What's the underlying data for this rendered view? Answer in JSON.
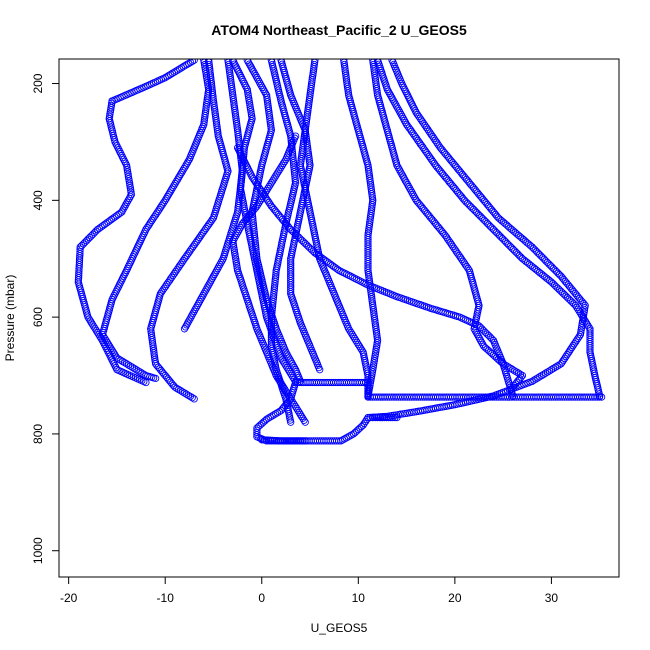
{
  "chart_data": {
    "type": "scatter",
    "title": "ATOM4 Northeast_Pacific_2 U_GEOS5",
    "xlabel": "U_GEOS5",
    "ylabel": "Pressure (mbar)",
    "xlim": [
      -21,
      37
    ],
    "ylim": [
      1045,
      158
    ],
    "y_reversed": true,
    "x_ticks": [
      -20,
      -10,
      0,
      10,
      20,
      30
    ],
    "x_tick_labels": [
      "-20",
      "-10",
      "0",
      "10",
      "20",
      "30"
    ],
    "y_ticks": [
      200,
      400,
      600,
      800,
      1000
    ],
    "y_tick_labels": [
      "200",
      "400",
      "600",
      "800",
      "1000"
    ],
    "marker": "open-circle",
    "color": "#0000ff",
    "grid": false,
    "series": [
      {
        "profile": 1,
        "x": [
          -15.5,
          -15.8,
          -15.2,
          -14.0,
          -13.5,
          -14.5,
          -17.0,
          -18.8,
          -19.0,
          -18.0,
          -16.5,
          -15.0,
          -12.0
        ],
        "y": [
          230,
          260,
          300,
          340,
          390,
          420,
          450,
          480,
          540,
          600,
          640,
          690,
          712
        ]
      },
      {
        "profile": 2,
        "x": [
          -6.0,
          -5.5,
          -6.0,
          -7.5,
          -10.0,
          -12.0,
          -14.0,
          -15.5,
          -16.5,
          -15.0,
          -12.0,
          -11.0
        ],
        "y": [
          160,
          210,
          270,
          330,
          400,
          450,
          520,
          570,
          630,
          670,
          700,
          705
        ]
      },
      {
        "profile": 3,
        "x": [
          -5.5,
          -5.0,
          -4.5,
          -3.5,
          -5.0,
          -8.0,
          -10.5,
          -11.5,
          -11.0,
          -9.0,
          -7.0
        ],
        "y": [
          160,
          230,
          290,
          350,
          430,
          500,
          560,
          620,
          680,
          720,
          740
        ]
      },
      {
        "profile": 4,
        "x": [
          -3.5,
          -3.0,
          -2.5,
          -2.0,
          -2.5,
          -4.0,
          -6.0,
          -8.0
        ],
        "y": [
          160,
          220,
          280,
          350,
          420,
          500,
          560,
          620
        ]
      },
      {
        "profile": 5,
        "x": [
          -3.0,
          -1.5,
          -1.0,
          -1.8,
          -2.2,
          -1.5,
          -0.5,
          0.5,
          2.0,
          3.5
        ],
        "y": [
          160,
          210,
          260,
          310,
          380,
          440,
          520,
          600,
          670,
          710
        ]
      },
      {
        "profile": 6,
        "x": [
          -1.5,
          0.5,
          1.0,
          0.0,
          -1.0,
          -0.5,
          0.5,
          1.5,
          2.5,
          3.5,
          4.0
        ],
        "y": [
          160,
          220,
          280,
          340,
          420,
          500,
          570,
          620,
          660,
          690,
          710
        ]
      },
      {
        "profile": 7,
        "x": [
          1.0,
          2.0,
          3.0,
          3.5,
          2.5,
          1.5,
          1.0,
          1.0,
          1.5,
          2.5,
          3.0
        ],
        "y": [
          160,
          230,
          290,
          370,
          440,
          520,
          600,
          650,
          690,
          740,
          780
        ]
      },
      {
        "profile": 8,
        "x": [
          2.0,
          3.0,
          4.5,
          5.0,
          4.0,
          3.0,
          3.0,
          4.0,
          5.0,
          6.0
        ],
        "y": [
          160,
          220,
          280,
          340,
          420,
          500,
          560,
          610,
          650,
          690
        ]
      },
      {
        "profile": 9,
        "x": [
          5.5,
          5.0,
          4.5,
          4.0,
          5.0,
          6.0,
          7.5,
          9.0,
          10.5,
          11.0,
          11.0
        ],
        "y": [
          160,
          220,
          280,
          340,
          420,
          500,
          560,
          620,
          660,
          700,
          735
        ]
      },
      {
        "profile": 10,
        "x": [
          8.5,
          9.0,
          10.0,
          11.0,
          11.5,
          11.0,
          11.0,
          11.5,
          12.0,
          11.5,
          11.0
        ],
        "y": [
          160,
          220,
          280,
          340,
          400,
          460,
          520,
          580,
          640,
          690,
          735
        ]
      },
      {
        "profile": 11,
        "x": [
          11.5,
          12.0,
          13.0,
          14.0,
          16.0,
          19.0,
          21.5,
          22.5,
          22.0,
          23.0,
          25.0,
          27.0,
          26.0
        ],
        "y": [
          160,
          220,
          280,
          340,
          400,
          460,
          520,
          580,
          620,
          650,
          680,
          700,
          720
        ]
      },
      {
        "profile": 12,
        "x": [
          12.0,
          13.0,
          15.0,
          18.0,
          21.0,
          24.0,
          27.0,
          30.0,
          32.5,
          34.0,
          34.0,
          34.5,
          35.0
        ],
        "y": [
          160,
          210,
          270,
          340,
          400,
          450,
          500,
          540,
          580,
          620,
          660,
          700,
          735
        ]
      },
      {
        "profile": 13,
        "x": [
          13.5,
          14.5,
          16.0,
          18.5,
          21.5,
          24.5,
          28.0,
          31.0,
          33.5,
          33.0,
          31.0,
          28.0,
          24.0,
          20.0,
          16.0,
          13.0,
          11.0
        ],
        "y": [
          160,
          200,
          250,
          310,
          370,
          430,
          480,
          530,
          580,
          630,
          680,
          710,
          735,
          750,
          762,
          770,
          772
        ]
      },
      {
        "profile": 14,
        "x": [
          -2.5,
          -1.0,
          1.0,
          3.0,
          5.5,
          8.0,
          11.0,
          14.0,
          17.5,
          20.5,
          22.5,
          24.0,
          25.0,
          26.0
        ],
        "y": [
          310,
          360,
          410,
          450,
          490,
          520,
          545,
          565,
          585,
          600,
          615,
          640,
          680,
          735
        ]
      },
      {
        "profile": 15,
        "x": [
          3.5,
          2.5,
          1.0,
          -0.5,
          -2.0,
          -3.0,
          -2.5,
          -1.5,
          -0.5,
          0.5,
          1.5,
          3.0,
          4.5
        ],
        "y": [
          290,
          330,
          370,
          410,
          440,
          470,
          520,
          570,
          620,
          660,
          700,
          740,
          780
        ]
      },
      {
        "profile": 16,
        "x": [
          -15.5,
          -12.0,
          -10.0,
          -8.5,
          -7.0
        ],
        "y": [
          230,
          205,
          190,
          175,
          160
        ]
      },
      {
        "profile": 17,
        "x": [
          3.5,
          5.0,
          7.0,
          9.0,
          11.0,
          11.0,
          13.0,
          16.0,
          20.0,
          25.0,
          30.0,
          35.2
        ],
        "y": [
          712,
          712,
          712,
          712,
          712,
          737,
          737,
          737,
          737,
          737,
          737,
          737
        ]
      },
      {
        "profile": 18,
        "x": [
          0.0,
          2.0,
          4.0,
          6.0,
          8.2,
          9.5,
          10.5,
          11.0,
          11.5,
          12.5,
          14.0
        ],
        "y": [
          810,
          812,
          812,
          812,
          812,
          800,
          785,
          772,
          772,
          772,
          772
        ]
      },
      {
        "profile": 19,
        "x": [
          3.5,
          3.0,
          2.0,
          0.5,
          -0.5,
          -0.5,
          0.5,
          1.5,
          3.0,
          4.5
        ],
        "y": [
          712,
          740,
          760,
          775,
          790,
          805,
          812,
          812,
          812,
          812
        ]
      }
    ]
  }
}
